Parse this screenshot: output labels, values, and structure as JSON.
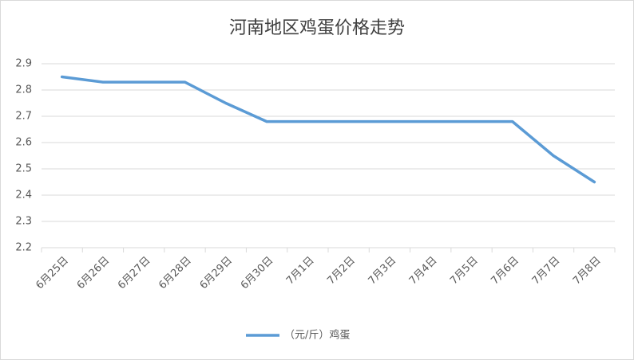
{
  "chart_data": {
    "type": "line",
    "title": "河南地区鸡蛋价格走势",
    "categories": [
      "6月25日",
      "6月26日",
      "6月27日",
      "6月28日",
      "6月29日",
      "6月30日",
      "7月1日",
      "7月2日",
      "7月3日",
      "7月4日",
      "7月5日",
      "7月6日",
      "7月7日",
      "7月8日"
    ],
    "series": [
      {
        "name": "（元/斤）鸡蛋",
        "color": "#5b9bd5",
        "values": [
          2.85,
          2.83,
          2.83,
          2.83,
          2.75,
          2.68,
          2.68,
          2.68,
          2.68,
          2.68,
          2.68,
          2.68,
          2.55,
          2.45
        ]
      }
    ],
    "ylim": [
      2.2,
      2.9
    ],
    "yticks": [
      2.2,
      2.3,
      2.4,
      2.5,
      2.6,
      2.7,
      2.8,
      2.9
    ],
    "grid": true,
    "legend": "bottom"
  }
}
